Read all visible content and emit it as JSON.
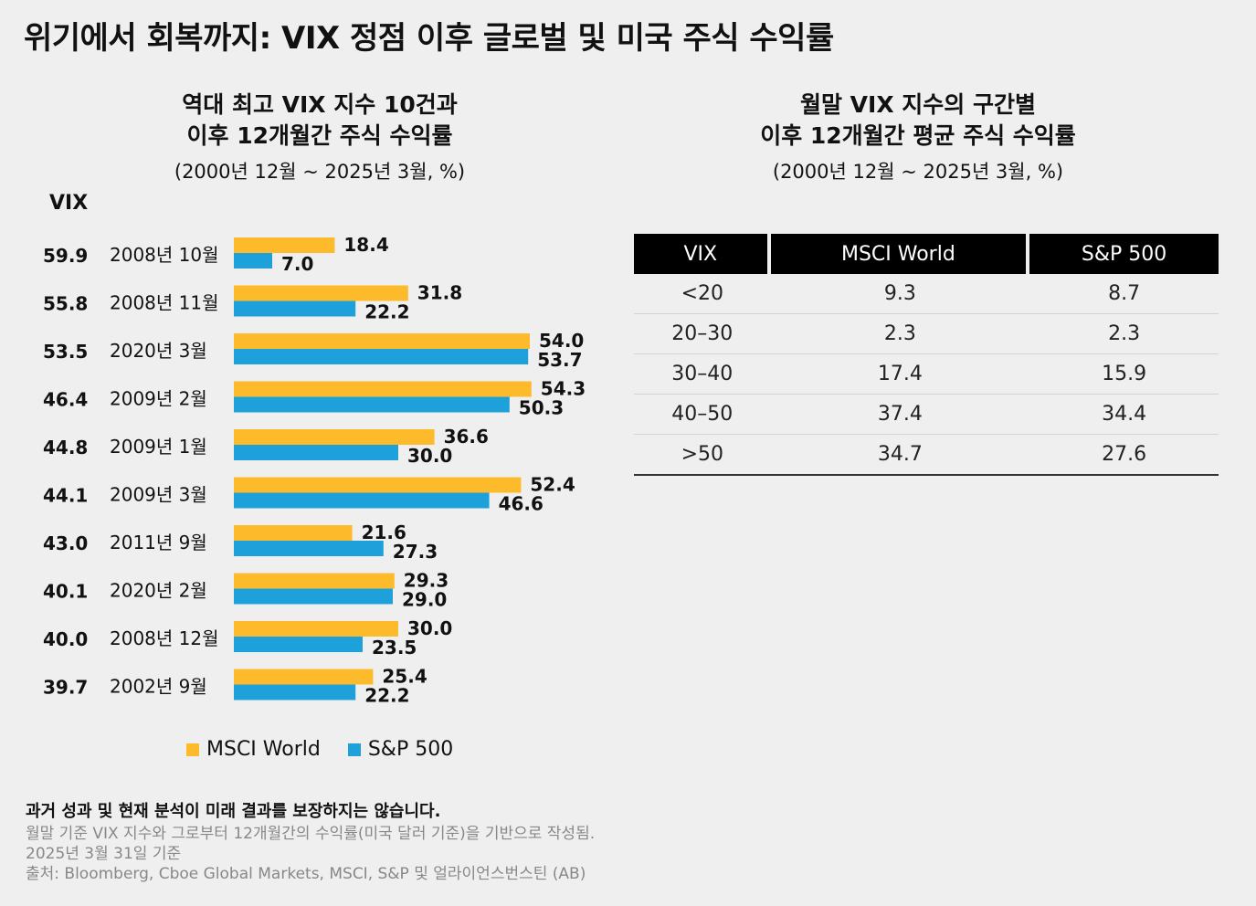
{
  "title": "위기에서 회복까지: VIX 정점 이후 글로벌 및 미국 주식 수익률",
  "left_panel": {
    "title_line1": "역대 최고 VIX 지수 10건과",
    "title_line2": "이후 12개월간 주식 수익률",
    "range": "(2000년 12월 ~ 2025년 3월, %)",
    "vix_header": "VIX"
  },
  "right_panel": {
    "title_line1": "월말 VIX 지수의 구간별",
    "title_line2": "이후 12개월간 평균 주식 수익률",
    "range": "(2000년 12월 ~ 2025년 3월, %)"
  },
  "legend": {
    "msci": "MSCI World",
    "sp": "S&P 500"
  },
  "colors": {
    "msci": "#FDBB2C",
    "sp": "#1EA0DB"
  },
  "chart_data": {
    "type": "bar",
    "orientation": "horizontal",
    "categories": [
      "2008년 10월",
      "2008년 11월",
      "2020년 3월",
      "2009년 2월",
      "2009년 1월",
      "2009년 3월",
      "2011년 9월",
      "2020년 2월",
      "2008년 12월",
      "2002년 9월"
    ],
    "vix": [
      "59.9",
      "55.8",
      "53.5",
      "46.4",
      "44.8",
      "44.1",
      "43.0",
      "40.1",
      "40.0",
      "39.7"
    ],
    "series": [
      {
        "name": "MSCI World",
        "values": [
          18.4,
          31.8,
          54.0,
          54.3,
          36.6,
          52.4,
          21.6,
          29.3,
          30.0,
          25.4
        ]
      },
      {
        "name": "S&P 500",
        "values": [
          7.0,
          22.2,
          53.7,
          50.3,
          30.0,
          46.6,
          27.3,
          29.0,
          23.5,
          22.2
        ]
      }
    ]
  },
  "table": {
    "headers": [
      "VIX",
      "MSCI World",
      "S&P 500"
    ],
    "rows": [
      [
        "<20",
        "9.3",
        "8.7"
      ],
      [
        "20–30",
        "2.3",
        "2.3"
      ],
      [
        "30–40",
        "17.4",
        "15.9"
      ],
      [
        "40–50",
        "37.4",
        "34.4"
      ],
      [
        ">50",
        "34.7",
        "27.6"
      ]
    ]
  },
  "footer": {
    "disclaimer": "과거 성과 및 현재 분석이 미래 결과를 보장하지는 않습니다.",
    "note1": "월말 기준 VIX 지수와 그로부터 12개월간의 수익률(미국 달러 기준)을 기반으로 작성됨.",
    "note2": "2025년 3월 31일 기준",
    "source": "출처: Bloomberg, Cboe Global Markets, MSCI, S&P 및 얼라이언스번스틴 (AB)"
  }
}
